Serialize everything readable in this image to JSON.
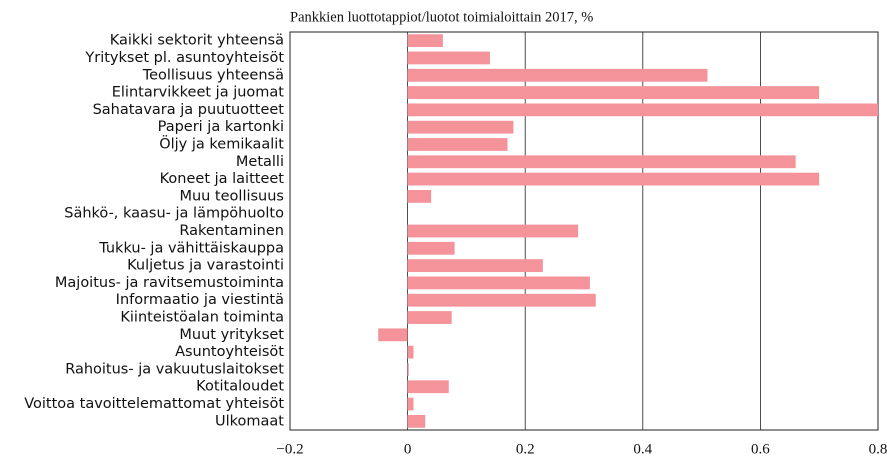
{
  "chart_data": {
    "type": "barh",
    "title": "Pankkien luottotappiot/luotot toimialoittain 2017, %",
    "categories": [
      "Kaikki sektorit yhteensä",
      "Yritykset pl. asuntoyhteisöt",
      "Teollisuus yhteensä",
      "Elintarvikkeet ja juomat",
      "Sahatavara ja puutuotteet",
      "Paperi ja kartonki",
      "Öljy ja kemikaalit",
      "Metalli",
      "Koneet ja laitteet",
      "Muu teollisuus",
      "Sähkö-, kaasu- ja lämpöhuolto",
      "Rakentaminen",
      "Tukku- ja vähittäiskauppa",
      "Kuljetus ja varastointi",
      "Majoitus- ja ravitsemustoiminta",
      "Informaatio ja viestintä",
      "Kiinteistöalan toiminta",
      "Muut yritykset",
      "Asuntoyhteisöt",
      "Rahoitus- ja vakuutuslaitokset",
      "Kotitaloudet",
      "Voittoa tavoittelemattomat yhteisöt",
      "Ulkomaat"
    ],
    "values": [
      0.06,
      0.14,
      0.51,
      0.7,
      0.8,
      0.18,
      0.17,
      0.66,
      0.7,
      0.04,
      0,
      0.29,
      0.08,
      0.23,
      0.31,
      0.32,
      0.075,
      -0.05,
      0.01,
      0.002,
      0.07,
      0.01,
      0.03
    ],
    "color": "#f4939a",
    "xlim": [
      -0.2,
      0.8
    ],
    "xticks": [
      {
        "value": -0.2,
        "label": "−0.2"
      },
      0,
      0.2,
      0.4,
      0.6,
      0.8
    ],
    "grid": true
  }
}
